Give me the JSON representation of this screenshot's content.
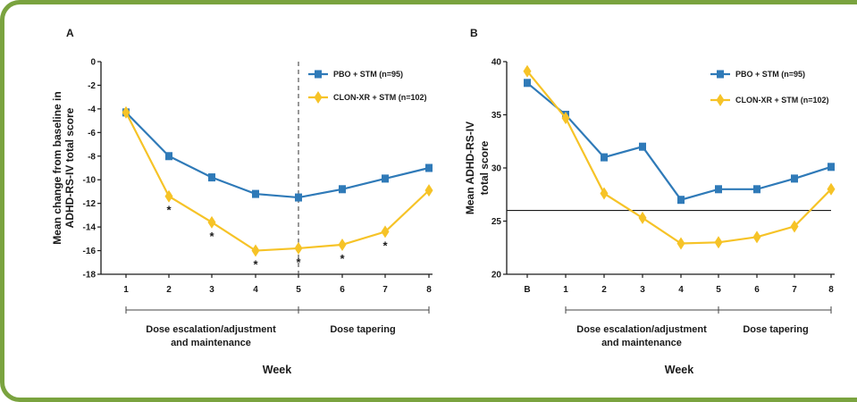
{
  "colors": {
    "frame": "#7aa33f",
    "pbo": "#2f7ab8",
    "clon": "#f6c327",
    "axis": "#1a1a1a"
  },
  "chart_data": [
    {
      "panel": "A",
      "type": "line",
      "ylabel_line1": "Mean change from baseline in",
      "ylabel_line2": "ADHD-RS-IV total score",
      "xlabel": "Week",
      "ylim": [
        -18,
        0
      ],
      "y_ticks": [
        "0",
        "-2",
        "-4",
        "-6",
        "-8",
        "-10",
        "-12",
        "-14",
        "-16",
        "-18"
      ],
      "categories": [
        "1",
        "2",
        "3",
        "4",
        "5",
        "6",
        "7",
        "8"
      ],
      "series": [
        {
          "name": "PBO + STM (n=95)",
          "marker": "square",
          "values": [
            -4.3,
            -8.0,
            -9.8,
            -11.2,
            -11.5,
            -10.8,
            -9.9,
            -9.0
          ]
        },
        {
          "name": "CLON-XR + STM (n=102)",
          "marker": "diamond",
          "values": [
            -4.3,
            -11.4,
            -13.6,
            -16.0,
            -15.8,
            -15.5,
            -14.4,
            -10.9
          ]
        }
      ],
      "significance_marks": [
        "",
        "*",
        "*",
        "*",
        "*",
        "*",
        "*",
        ""
      ],
      "phases": [
        "Dose escalation/adjustment|and maintenance",
        "Dose tapering"
      ],
      "divider_after_category": "5",
      "legend_position": "top-right",
      "grid": false
    },
    {
      "panel": "B",
      "type": "line",
      "ylabel_line1": "Mean ADHD-RS-IV",
      "ylabel_line2": "total score",
      "xlabel": "Week",
      "ylim": [
        20,
        40
      ],
      "y_ticks": [
        "40",
        "35",
        "30",
        "25",
        "20"
      ],
      "categories": [
        "B",
        "1",
        "2",
        "3",
        "4",
        "5",
        "6",
        "7",
        "8"
      ],
      "series": [
        {
          "name": "PBO + STM (n=95)",
          "marker": "square",
          "values": [
            38.0,
            35.0,
            31.0,
            32.0,
            27.0,
            28.0,
            28.0,
            29.0,
            30.1
          ]
        },
        {
          "name": "CLON-XR + STM (n=102)",
          "marker": "diamond",
          "values": [
            39.1,
            34.7,
            27.6,
            25.3,
            22.9,
            23.0,
            23.5,
            24.5,
            28.0
          ]
        }
      ],
      "reference_line": 26,
      "phases": [
        "Dose escalation/adjustment|and maintenance",
        "Dose tapering"
      ],
      "legend_position": "top-right",
      "grid": false
    }
  ]
}
